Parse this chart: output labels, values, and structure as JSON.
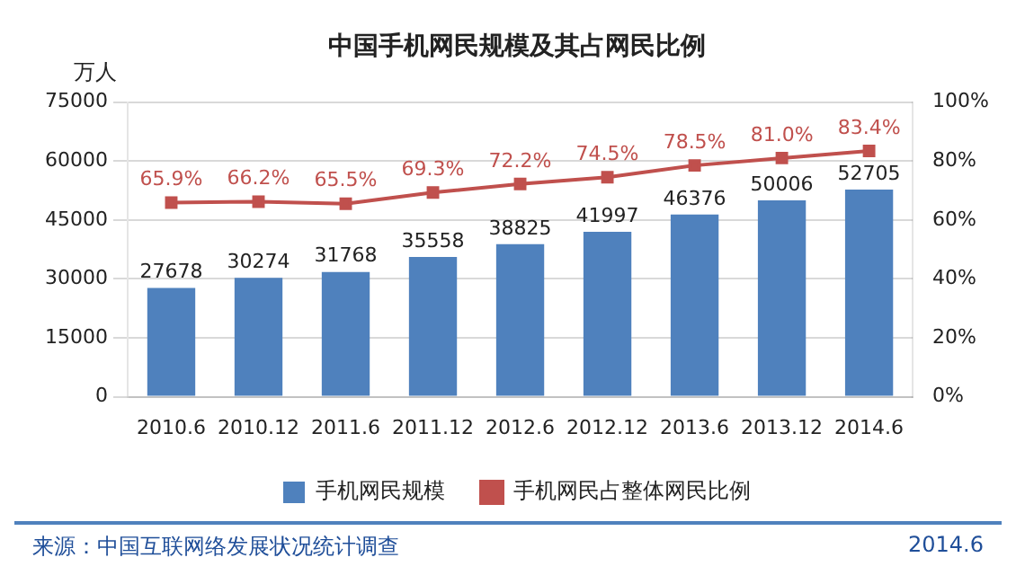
{
  "chart_data": {
    "type": "bar",
    "title": "中国手机网民规模及其占网民比例",
    "ylabel": "万人",
    "categories": [
      "2010.6",
      "2010.12",
      "2011.6",
      "2011.12",
      "2012.6",
      "2012.12",
      "2013.6",
      "2013.12",
      "2014.6"
    ],
    "series": [
      {
        "name": "手机网民规模",
        "color": "#4f81bd",
        "values": [
          27678,
          30274,
          31768,
          35558,
          38825,
          41997,
          46376,
          50006,
          52705
        ],
        "value_labels": [
          "27678",
          "30274",
          "31768",
          "35558",
          "38825",
          "41997",
          "46376",
          "50006",
          "52705"
        ]
      },
      {
        "name": "手机网民占整体网民比例",
        "type": "line",
        "axis": "y2",
        "color": "#c0504d",
        "marker": "square",
        "values": [
          65.9,
          66.2,
          65.5,
          69.3,
          72.2,
          74.5,
          78.5,
          81.0,
          83.4
        ],
        "value_labels": [
          "65.9%",
          "66.2%",
          "65.5%",
          "69.3%",
          "72.2%",
          "74.5%",
          "78.5%",
          "81.0%",
          "83.4%"
        ]
      }
    ],
    "ylim": [
      0,
      75000
    ],
    "yticks": [
      0,
      15000,
      30000,
      45000,
      60000,
      75000
    ],
    "y2lim": [
      0,
      100
    ],
    "y2ticks": [
      {
        "value": 0,
        "label": "0%"
      },
      {
        "value": 20,
        "label": "20%"
      },
      {
        "value": 40,
        "label": "40%"
      },
      {
        "value": 60,
        "label": "60%"
      },
      {
        "value": 80,
        "label": "80%"
      },
      {
        "value": 100,
        "label": "100%"
      }
    ],
    "grid": "y",
    "legend": "bottom",
    "annotations": [
      "来源：中国互联网络发展状况统计调查",
      "2014.6"
    ]
  }
}
